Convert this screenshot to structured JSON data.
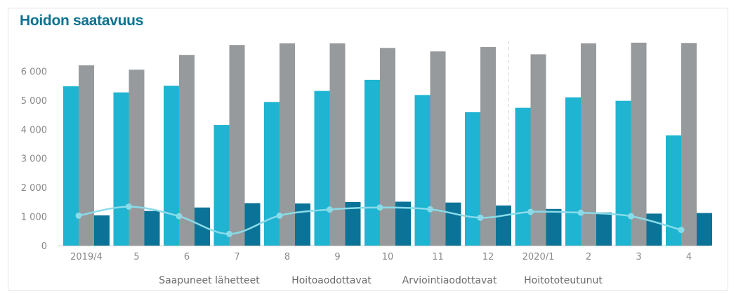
{
  "chart_data": {
    "type": "bar",
    "title": "Hoidon saatavuus",
    "categories": [
      "2019/4",
      "5",
      "6",
      "7",
      "8",
      "9",
      "10",
      "11",
      "12",
      "2020/1",
      "2",
      "3",
      "4"
    ],
    "ylim": [
      0,
      6800
    ],
    "yticks": [
      0,
      1000,
      2000,
      3000,
      4000,
      5000,
      6000
    ],
    "ytick_labels": [
      "0",
      "1 000",
      "2 000",
      "3 000",
      "4 000",
      "5 000",
      "6 000"
    ],
    "grid": false,
    "legend_position": "bottom",
    "series": [
      {
        "name": "Saapuneet lähetteet",
        "type": "bar",
        "color": "#1eb4d2",
        "values": [
          5480,
          5270,
          5500,
          4150,
          4940,
          5320,
          5700,
          5180,
          4590,
          4740,
          5100,
          4980,
          3790
        ]
      },
      {
        "name": "Hoitoaodottavat",
        "type": "bar",
        "color": "#979a9c",
        "values": [
          6200,
          6050,
          6560,
          6900,
          6960,
          6960,
          6800,
          6680,
          6830,
          6580,
          6960,
          6980,
          6970
        ]
      },
      {
        "name": "Arviointiaodottavat",
        "type": "bar",
        "color": "#0a7397",
        "values": [
          1040,
          1190,
          1310,
          1460,
          1450,
          1500,
          1510,
          1480,
          1380,
          1260,
          1140,
          1100,
          1120
        ]
      },
      {
        "name": "Hoitototeutunut",
        "type": "line",
        "color": "#8adbe9",
        "values": [
          1030,
          1340,
          1010,
          400,
          1030,
          1240,
          1310,
          1250,
          960,
          1160,
          1130,
          1010,
          540
        ]
      }
    ],
    "annotations": [
      {
        "type": "vertical-dashed-line",
        "at": "between 12 and 2020/1"
      }
    ]
  }
}
